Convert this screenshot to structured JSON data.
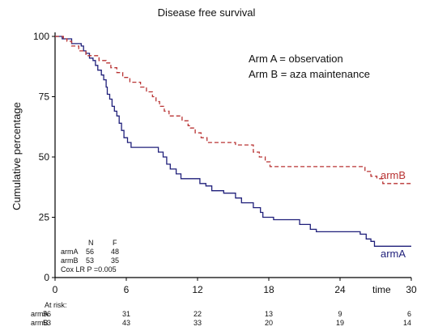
{
  "chart_data": {
    "type": "line",
    "title": "Disease free survival",
    "xlabel": "time",
    "ylabel": "Cumulative percentage",
    "xlim": [
      0,
      30
    ],
    "ylim": [
      0,
      100
    ],
    "xticks": [
      "0",
      "6",
      "12",
      "18",
      "24",
      "30"
    ],
    "yticks": [
      "0",
      "25",
      "50",
      "75",
      "100"
    ],
    "grid": false,
    "legend": [
      "Arm A = observation",
      "Arm B = aza maintenance"
    ],
    "series": [
      {
        "name": "armA",
        "color": "#1f1f7a",
        "step": true,
        "points": [
          [
            0,
            100
          ],
          [
            0.6,
            99
          ],
          [
            1.4,
            97
          ],
          [
            2.2,
            96
          ],
          [
            2.4,
            94
          ],
          [
            2.6,
            93
          ],
          [
            2.9,
            91
          ],
          [
            3.2,
            90
          ],
          [
            3.4,
            88
          ],
          [
            3.6,
            86
          ],
          [
            3.9,
            84
          ],
          [
            4.1,
            82
          ],
          [
            4.3,
            79
          ],
          [
            4.4,
            76
          ],
          [
            4.6,
            74
          ],
          [
            4.8,
            71
          ],
          [
            5.0,
            69
          ],
          [
            5.2,
            67
          ],
          [
            5.4,
            64
          ],
          [
            5.6,
            61
          ],
          [
            5.8,
            58
          ],
          [
            6.1,
            56
          ],
          [
            6.4,
            54
          ],
          [
            8.7,
            52
          ],
          [
            9.1,
            50
          ],
          [
            9.4,
            47
          ],
          [
            9.7,
            45
          ],
          [
            10.2,
            43
          ],
          [
            10.6,
            41
          ],
          [
            12.2,
            39
          ],
          [
            12.7,
            38
          ],
          [
            13.2,
            36
          ],
          [
            14.2,
            35
          ],
          [
            15.2,
            33
          ],
          [
            15.7,
            31
          ],
          [
            16.7,
            29
          ],
          [
            17.3,
            27
          ],
          [
            17.5,
            25
          ],
          [
            18.4,
            24
          ],
          [
            20.6,
            22
          ],
          [
            21.5,
            20
          ],
          [
            22.0,
            19
          ],
          [
            25.7,
            18
          ],
          [
            26.2,
            16
          ],
          [
            26.6,
            15
          ],
          [
            26.9,
            13
          ],
          [
            30.0,
            13
          ]
        ]
      },
      {
        "name": "armB",
        "color": "#b83232",
        "step": true,
        "points": [
          [
            0,
            100
          ],
          [
            0.7,
            99
          ],
          [
            1.0,
            98
          ],
          [
            1.4,
            96
          ],
          [
            2.0,
            94
          ],
          [
            2.6,
            92
          ],
          [
            3.7,
            90
          ],
          [
            4.3,
            89
          ],
          [
            4.7,
            87
          ],
          [
            5.2,
            85
          ],
          [
            5.7,
            83
          ],
          [
            6.3,
            81
          ],
          [
            7.2,
            79
          ],
          [
            7.7,
            77
          ],
          [
            8.2,
            75
          ],
          [
            8.5,
            73
          ],
          [
            8.8,
            71
          ],
          [
            9.2,
            69
          ],
          [
            9.6,
            67
          ],
          [
            10.7,
            65
          ],
          [
            11.2,
            63
          ],
          [
            11.4,
            62
          ],
          [
            11.8,
            60
          ],
          [
            12.3,
            58
          ],
          [
            12.8,
            56
          ],
          [
            13.2,
            56
          ],
          [
            15.2,
            55
          ],
          [
            16.7,
            52
          ],
          [
            17.2,
            50
          ],
          [
            17.7,
            48
          ],
          [
            18.1,
            46
          ],
          [
            19.1,
            46
          ],
          [
            26.1,
            44
          ],
          [
            26.6,
            42
          ],
          [
            27.1,
            41
          ],
          [
            27.6,
            39
          ],
          [
            30.0,
            39
          ]
        ]
      }
    ],
    "series_labels": {
      "armA": "armA",
      "armB": "armB"
    },
    "stats_table": {
      "header": [
        "",
        "N",
        "F"
      ],
      "rows": [
        [
          "armA",
          "56",
          "48"
        ],
        [
          "armB",
          "53",
          "35"
        ]
      ],
      "test": "Cox LR P =0.005"
    },
    "at_risk": {
      "label": "At risk:",
      "rows": [
        {
          "name": "armA",
          "values": [
            "56",
            "31",
            "22",
            "13",
            "9",
            "6"
          ]
        },
        {
          "name": "armB",
          "values": [
            "53",
            "43",
            "33",
            "20",
            "19",
            "14"
          ]
        }
      ]
    }
  }
}
